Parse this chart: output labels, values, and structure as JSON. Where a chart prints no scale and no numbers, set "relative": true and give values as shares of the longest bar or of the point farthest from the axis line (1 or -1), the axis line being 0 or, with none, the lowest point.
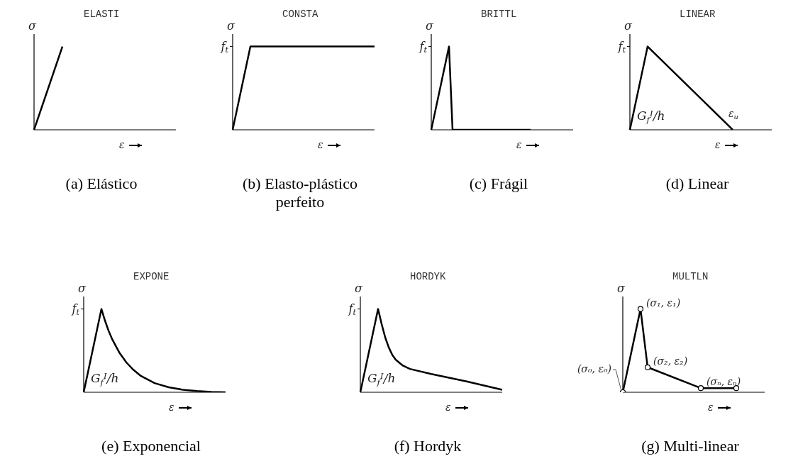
{
  "chart_data": [
    {
      "type": "line",
      "title": "ELASTI",
      "ylabel": "σ",
      "xlabel": "ε",
      "relative": true,
      "categories": [
        null,
        null,
        null,
        null,
        null,
        null,
        null,
        null,
        null,
        null,
        null,
        null,
        null,
        null,
        null,
        null,
        null,
        null,
        null,
        null,
        null,
        null,
        null,
        null,
        null,
        null,
        null,
        null,
        null,
        null,
        null,
        null,
        null,
        null,
        null,
        null,
        null,
        null,
        null,
        null,
        null
      ],
      "annotations": [
        "(a) Elástico"
      ],
      "series": [
        {
          "color": "#000000",
          "values": [
            0,
            null,
            null,
            null,
            null,
            null,
            null,
            null,
            1,
            null,
            null,
            null,
            null,
            null,
            null,
            null,
            null,
            null,
            null,
            null,
            null,
            null,
            null,
            null,
            null,
            null,
            null,
            null,
            null,
            null,
            null,
            null,
            null,
            null,
            null,
            null,
            null,
            null,
            null,
            null,
            null
          ]
        }
      ]
    },
    {
      "type": "line",
      "title": "CONSTA",
      "ylabel": "σ",
      "xlabel": "ε",
      "relative": true,
      "categories": [
        null,
        null,
        null,
        null,
        null,
        null,
        null,
        null,
        null,
        null,
        null,
        null,
        null,
        null,
        null,
        null,
        null,
        null,
        null,
        null,
        null,
        null,
        null,
        null,
        null,
        null,
        null,
        null,
        null,
        null,
        null,
        null,
        null,
        null,
        null,
        null,
        null,
        null,
        null,
        null,
        null
      ],
      "annotations": [
        "f$_{t}$",
        "(b) Elasto-plástico perfeito"
      ],
      "series": [
        {
          "color": "#000000",
          "values": [
            0,
            null,
            null,
            null,
            null,
            1,
            null,
            null,
            null,
            null,
            null,
            null,
            null,
            null,
            null,
            null,
            null,
            null,
            null,
            null,
            null,
            null,
            null,
            null,
            null,
            null,
            null,
            null,
            null,
            null,
            null,
            null,
            null,
            null,
            null,
            null,
            null,
            null,
            null,
            null,
            1
          ]
        }
      ]
    },
    {
      "type": "line",
      "title": "BRITTL",
      "ylabel": "σ",
      "xlabel": "ε",
      "relative": true,
      "categories": [
        null,
        null,
        null,
        null,
        null,
        null,
        null,
        null,
        null,
        null,
        null,
        null,
        null,
        null,
        null,
        null,
        null,
        null,
        null,
        null,
        null,
        null,
        null,
        null,
        null,
        null,
        null,
        null,
        null,
        null,
        null,
        null,
        null,
        null,
        null,
        null,
        null,
        null,
        null,
        null,
        null
      ],
      "annotations": [
        "f$_{t}$",
        "(c) Frágil"
      ],
      "series": [
        {
          "color": "#000000",
          "values": [
            0,
            null,
            null,
            null,
            null,
            1,
            0,
            null,
            null,
            null,
            null,
            null,
            null,
            null,
            null,
            null,
            null,
            null,
            null,
            null,
            null,
            null,
            null,
            null,
            null,
            null,
            null,
            null,
            0,
            null,
            null,
            null,
            null,
            null,
            null,
            null,
            null,
            null,
            null,
            null,
            null
          ]
        }
      ]
    },
    {
      "type": "line",
      "title": "LINEAR",
      "ylabel": "σ",
      "xlabel": "ε",
      "relative": true,
      "categories": [
        null,
        null,
        null,
        null,
        null,
        null,
        null,
        null,
        null,
        null,
        null,
        null,
        null,
        null,
        null,
        null,
        null,
        null,
        null,
        null,
        null,
        null,
        null,
        null,
        null,
        null,
        null,
        null,
        null,
        null,
        null,
        null,
        null,
        null,
        null,
        null,
        null,
        null,
        null,
        null,
        null
      ],
      "annotations": [
        "f$_{t}$",
        "G$_{f}$$^{I}$/h",
        "ε$_{u}$",
        "(d) Linear"
      ],
      "series": [
        {
          "color": "#000000",
          "values": [
            0,
            null,
            null,
            null,
            null,
            1,
            null,
            null,
            null,
            null,
            null,
            null,
            null,
            null,
            null,
            null,
            null,
            null,
            null,
            null,
            null,
            null,
            null,
            null,
            null,
            null,
            null,
            null,
            null,
            0,
            null,
            null,
            null,
            null,
            null,
            null,
            null,
            null,
            null,
            null,
            null
          ]
        }
      ]
    },
    {
      "type": "line",
      "title": "EXPONE",
      "ylabel": "σ",
      "xlabel": "ε",
      "relative": true,
      "categories": [
        null,
        null,
        null,
        null,
        null,
        null,
        null,
        null,
        null,
        null,
        null,
        null,
        null,
        null,
        null,
        null,
        null,
        null,
        null,
        null,
        null,
        null,
        null,
        null,
        null,
        null,
        null,
        null,
        null,
        null,
        null,
        null,
        null,
        null,
        null,
        null,
        null,
        null,
        null,
        null,
        null
      ],
      "annotations": [
        "f$_{t}$",
        "G$_{f}$$^{I}$/h",
        "(e) Exponencial"
      ],
      "series": [
        {
          "color": "#000000",
          "values": [
            0,
            null,
            null,
            null,
            null,
            1,
            0.86,
            0.74,
            0.64,
            null,
            0.48,
            null,
            0.36,
            null,
            0.27,
            null,
            0.2,
            null,
            null,
            null,
            0.11,
            null,
            null,
            null,
            0.06,
            null,
            null,
            null,
            0.03,
            null,
            null,
            null,
            0.015,
            null,
            null,
            null,
            0.005,
            null,
            null,
            null,
            0
          ]
        }
      ]
    },
    {
      "type": "line",
      "title": "HORDYK",
      "ylabel": "σ",
      "xlabel": "ε",
      "relative": true,
      "categories": [
        null,
        null,
        null,
        null,
        null,
        null,
        null,
        null,
        null,
        null,
        null,
        null,
        null,
        null,
        null,
        null,
        null,
        null,
        null,
        null,
        null,
        null,
        null,
        null,
        null,
        null,
        null,
        null,
        null,
        null,
        null,
        null,
        null,
        null,
        null,
        null,
        null,
        null,
        null,
        null,
        null
      ],
      "annotations": [
        "f$_{t}$",
        "G$_{f}$$^{I}$/h",
        "(f) Hordyk"
      ],
      "series": [
        {
          "color": "#000000",
          "values": [
            0,
            null,
            null,
            null,
            null,
            1,
            0.82,
            0.66,
            0.54,
            0.45,
            0.39,
            null,
            0.32,
            null,
            0.28,
            null,
            null,
            null,
            null,
            null,
            0.22,
            null,
            null,
            null,
            null,
            null,
            null,
            null,
            null,
            null,
            0.13,
            null,
            null,
            null,
            null,
            null,
            null,
            null,
            null,
            null,
            0.03
          ]
        }
      ]
    },
    {
      "type": "line",
      "title": "MULTLN",
      "ylabel": "σ",
      "xlabel": "ε",
      "relative": true,
      "marker": "circle",
      "categories": [
        null,
        null,
        null,
        null,
        null,
        null,
        null,
        null,
        null,
        null,
        null,
        null,
        null,
        null,
        null,
        null,
        null,
        null,
        null,
        null,
        null,
        null,
        null,
        null,
        null,
        null,
        null,
        null,
        null,
        null,
        null,
        null,
        null,
        null,
        null,
        null,
        null,
        null,
        null,
        null,
        null
      ],
      "annotations": [
        "(σ₀, ε₀)",
        "(σ₁, ε₁)",
        "(σ₂, ε₂)",
        "(σₙ, εₙ)",
        "(g) Multi-linear"
      ],
      "series": [
        {
          "color": "#000000",
          "values": [
            0,
            null,
            null,
            null,
            null,
            1,
            null,
            0.3,
            null,
            null,
            null,
            null,
            null,
            null,
            null,
            null,
            null,
            null,
            null,
            null,
            null,
            null,
            0.05,
            null,
            null,
            null,
            null,
            null,
            null,
            null,
            null,
            null,
            0.05,
            null,
            null,
            null,
            null,
            null,
            null,
            null,
            null
          ]
        }
      ]
    }
  ]
}
